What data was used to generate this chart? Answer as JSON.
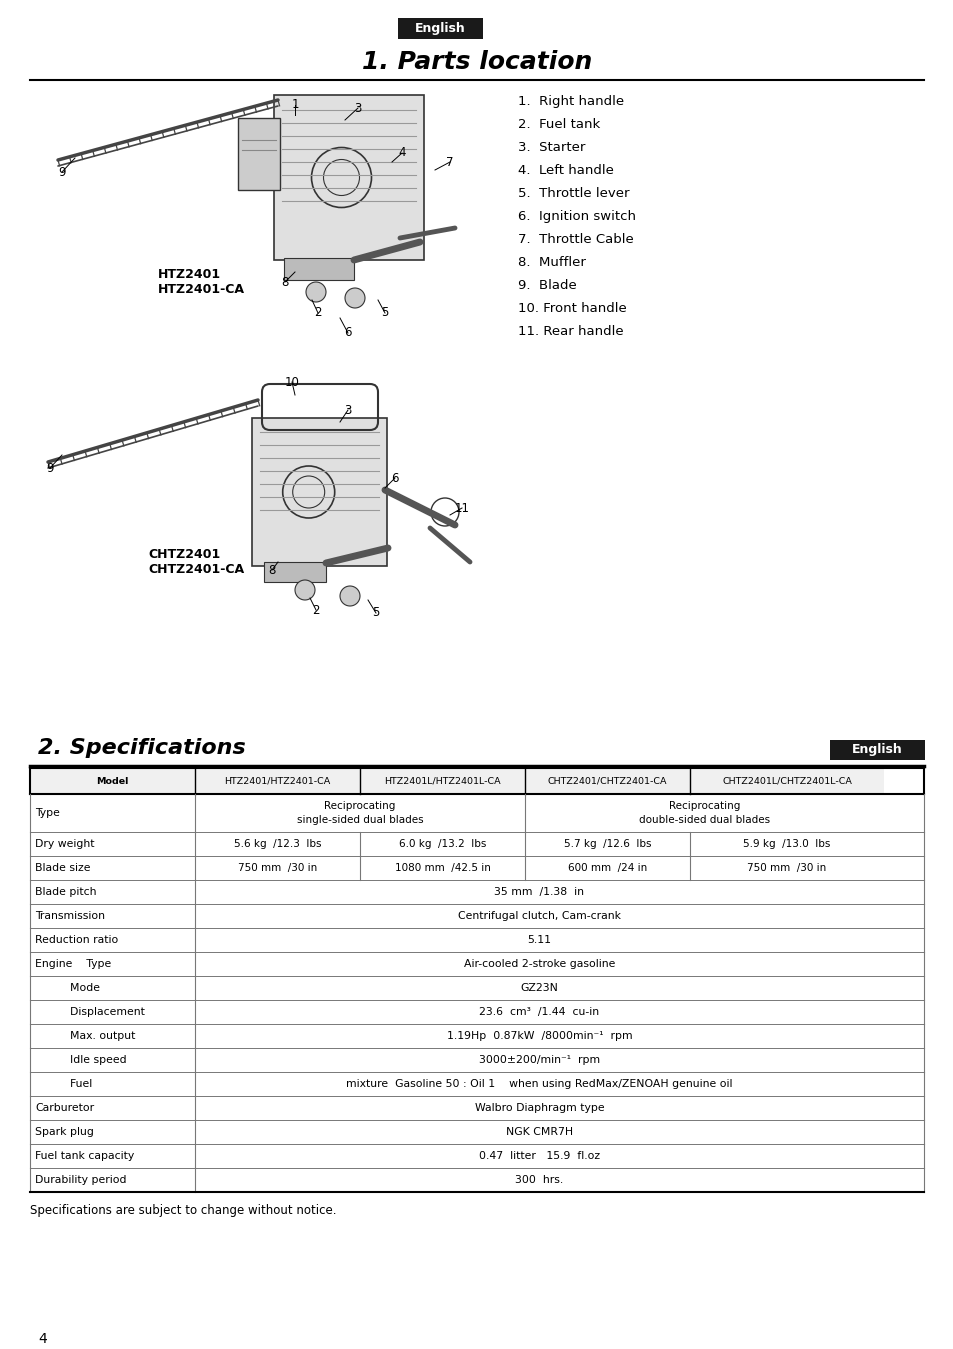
{
  "page_bg": "#ffffff",
  "title_parts": "1. Parts location",
  "title_specs": "2. Specifications",
  "english_bg": "#1a1a1a",
  "english_text": "English",
  "english_text_color": "#ffffff",
  "parts_list": [
    "1.  Right handle",
    "2.  Fuel tank",
    "3.  Starter",
    "4.  Left handle",
    "5.  Throttle lever",
    "6.  Ignition switch",
    "7.  Throttle Cable",
    "8.  Muffler",
    "9.  Blade",
    "10. Front handle",
    "11. Rear handle"
  ],
  "model1_label": "HTZ2401\nHTZ2401-CA",
  "model2_label": "CHTZ2401\nCHTZ2401-CA",
  "spec_note": "Specifications are subject to change without notice.",
  "page_number": "4",
  "table_header": [
    "Model",
    "HTZ2401/HTZ2401-CA",
    "HTZ2401L/HTZ2401L-CA",
    "CHTZ2401/CHTZ2401-CA",
    "CHTZ2401L/CHTZ2401L-CA"
  ],
  "table_rows": [
    {
      "label": "Type",
      "type": "two_merged",
      "val1": "Reciprocating\nsingle-sided dual blades",
      "val2": "Reciprocating\ndouble-sided dual blades"
    },
    {
      "label": "Dry weight",
      "type": "four",
      "vals": [
        "5.6 kg  /12.3  lbs",
        "6.0 kg  /13.2  lbs",
        "5.7 kg  /12.6  lbs",
        "5.9 kg  /13.0  lbs"
      ]
    },
    {
      "label": "Blade size",
      "type": "four",
      "vals": [
        "750 mm  /30 in",
        "1080 mm  /42.5 in",
        "600 mm  /24 in",
        "750 mm  /30 in"
      ]
    },
    {
      "label": "Blade pitch",
      "type": "one",
      "val": "35 mm  /1.38  in"
    },
    {
      "label": "Transmission",
      "type": "one",
      "val": "Centrifugal clutch, Cam-crank"
    },
    {
      "label": "Reduction ratio",
      "type": "one",
      "val": "5.11"
    },
    {
      "label": "Engine    Type",
      "type": "one",
      "val": "Air-cooled 2-stroke gasoline"
    },
    {
      "label": "          Mode",
      "type": "one",
      "val": "GZ23N"
    },
    {
      "label": "          Displacement",
      "type": "one",
      "val": "23.6  cm³  /1.44  cu-in"
    },
    {
      "label": "          Max. output",
      "type": "one",
      "val": "1.19Hp  0.87kW  /8000min⁻¹  rpm"
    },
    {
      "label": "          Idle speed",
      "type": "one",
      "val": "3000±200/min⁻¹  rpm"
    },
    {
      "label": "          Fuel",
      "type": "one",
      "val": "mixture  Gasoline 50 : Oil 1    when using RedMax/ZENOAH genuine oil"
    },
    {
      "label": "Carburetor",
      "type": "one",
      "val": "Walbro Diaphragm type"
    },
    {
      "label": "Spark plug",
      "type": "one",
      "val": "NGK CMR7H"
    },
    {
      "label": "Fuel tank capacity",
      "type": "one",
      "val": "0.47  litter   15.9  fl.oz"
    },
    {
      "label": "Durability period",
      "type": "one",
      "val": "300  hrs."
    }
  ]
}
